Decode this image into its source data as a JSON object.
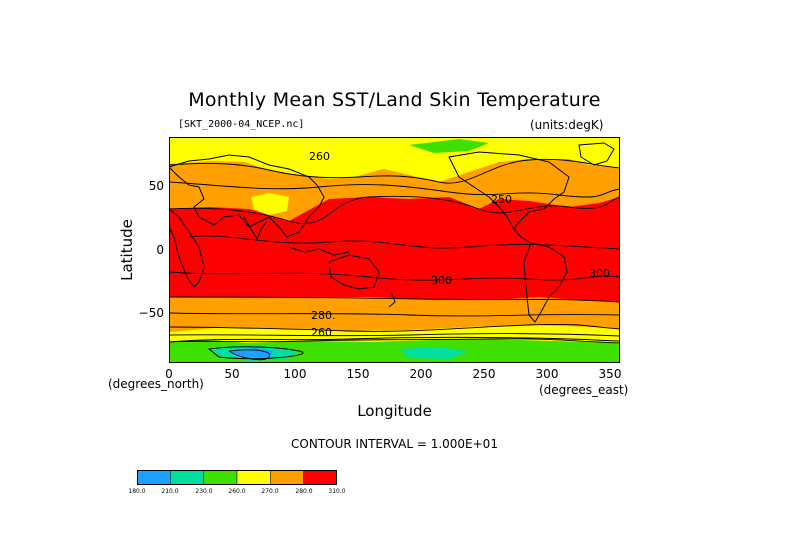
{
  "title": "Monthly Mean SST/Land Skin Temperature",
  "file_label": "[SKT_2000-04_NCEP.nc]",
  "units_label": "(units:degK)",
  "y_axis": {
    "label": "Latitude",
    "unit": "(degrees_north)",
    "ticks": [
      {
        "value": 50,
        "label": "50"
      },
      {
        "value": 0,
        "label": "0"
      },
      {
        "value": -50,
        "label": "−50"
      }
    ],
    "range": [
      -90,
      90
    ]
  },
  "x_axis": {
    "label": "Longitude",
    "unit": "(degrees_east)",
    "ticks": [
      {
        "value": 0,
        "label": "0"
      },
      {
        "value": 50,
        "label": "50"
      },
      {
        "value": 100,
        "label": "100"
      },
      {
        "value": 150,
        "label": "150"
      },
      {
        "value": 200,
        "label": "200"
      },
      {
        "value": 250,
        "label": "250"
      },
      {
        "value": 300,
        "label": "300"
      },
      {
        "value": 350,
        "label": "350"
      }
    ],
    "range": [
      0,
      357
    ]
  },
  "contour_interval": "CONTOUR INTERVAL = 1.000E+01",
  "contour_labels": [
    {
      "text": "260",
      "lon": 120,
      "lat": 73
    },
    {
      "text": "250",
      "lon": 265,
      "lat": 40
    },
    {
      "text": "300",
      "lon": 215,
      "lat": -22
    },
    {
      "text": "300",
      "lon": 340,
      "lat": -17
    },
    {
      "text": "280.",
      "lon": 125,
      "lat": -50
    },
    {
      "text": "260",
      "lon": 120,
      "lat": -65
    }
  ],
  "colors": {
    "red": "#ff0000",
    "orange": "#ff9f00",
    "yellow": "#ffff00",
    "green": "#3fdf00",
    "teal": "#00df9f",
    "blue": "#1f9fff",
    "line": "#000000"
  },
  "colorbar": {
    "colors": [
      "#1f9fff",
      "#00df9f",
      "#3fdf00",
      "#ffff00",
      "#ff9f00",
      "#ff0000"
    ],
    "labels": [
      "180.0",
      "210.0",
      "230.0",
      "260.0",
      "270.0",
      "280.0",
      "310.0"
    ]
  }
}
